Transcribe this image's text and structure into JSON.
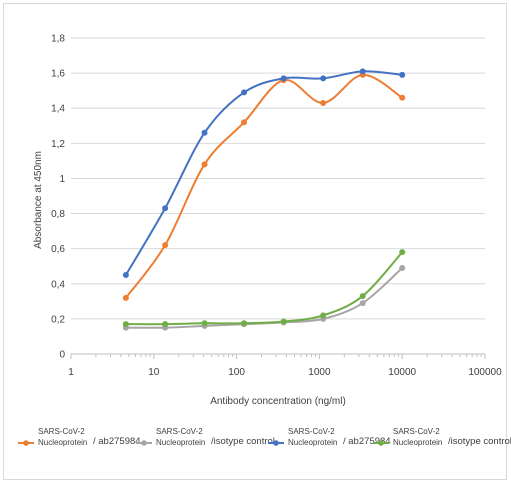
{
  "chart_data": {
    "type": "line",
    "xlabel": "Antibody concentration (ng/ml)",
    "ylabel": "Absorbance at 450nm",
    "xscale": "log",
    "xlim": [
      1,
      100000
    ],
    "ylim": [
      0,
      1.8
    ],
    "xticks": [
      "1",
      "10",
      "100",
      "1000",
      "10000",
      "100000"
    ],
    "yticks": [
      "0",
      "0,2",
      "0,4",
      "0,6",
      "0,8",
      "1",
      "1,2",
      "1,4",
      "1,6",
      "1,8"
    ],
    "grid": "horizontal",
    "legend_position": "bottom",
    "x": [
      4.6,
      13.7,
      41,
      123,
      370,
      1111,
      3333,
      10000
    ],
    "series": [
      {
        "legend_line1": "SARS-CoV-2",
        "legend_line2": "Nucleoprotein",
        "legend_suffix": "/ ab275984",
        "color": "#ed7d31",
        "values": [
          0.32,
          0.62,
          1.08,
          1.32,
          1.56,
          1.43,
          1.59,
          1.46
        ]
      },
      {
        "legend_line1": "SARS-CoV-2",
        "legend_line2": "Nucleoprotein",
        "legend_suffix": "/isotype control",
        "color": "#a5a5a5",
        "values": [
          0.15,
          0.15,
          0.16,
          0.17,
          0.18,
          0.2,
          0.29,
          0.49
        ]
      },
      {
        "legend_line1": "SARS-CoV-2",
        "legend_line2": "Nucleoprotein",
        "legend_suffix": "/ ab275984",
        "color": "#4472c4",
        "values": [
          0.45,
          0.83,
          1.26,
          1.49,
          1.57,
          1.57,
          1.61,
          1.59
        ]
      },
      {
        "legend_line1": "SARS-CoV-2",
        "legend_line2": "Nucleoprotein",
        "legend_suffix": "/isotype control",
        "color": "#70ad47",
        "values": [
          0.17,
          0.17,
          0.175,
          0.175,
          0.185,
          0.22,
          0.33,
          0.58
        ]
      }
    ]
  }
}
